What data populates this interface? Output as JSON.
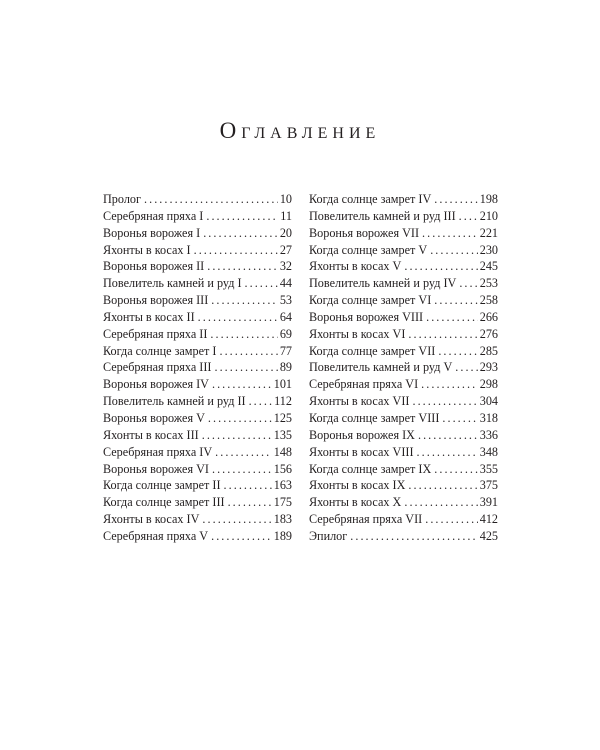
{
  "title": "Оглавление",
  "left_column": [
    {
      "title": "Пролог",
      "page": "10"
    },
    {
      "title": "Серебряная пряха I",
      "page": "11"
    },
    {
      "title": "Воронья ворожея I",
      "page": "20"
    },
    {
      "title": "Яхонты в косах I",
      "page": "27"
    },
    {
      "title": "Воронья ворожея II",
      "page": "32"
    },
    {
      "title": "Повелитель камней и руд I",
      "page": "44"
    },
    {
      "title": "Воронья ворожея III",
      "page": "53"
    },
    {
      "title": "Яхонты в косах II",
      "page": "64"
    },
    {
      "title": "Серебряная пряха II",
      "page": "69"
    },
    {
      "title": "Когда солнце замрет I",
      "page": "77"
    },
    {
      "title": "Серебряная пряха III",
      "page": "89"
    },
    {
      "title": "Воронья ворожея IV",
      "page": "101"
    },
    {
      "title": "Повелитель камней и руд II",
      "page": "112"
    },
    {
      "title": "Воронья ворожея V",
      "page": "125"
    },
    {
      "title": "Яхонты в косах III",
      "page": "135"
    },
    {
      "title": "Серебряная пряха IV",
      "page": "148"
    },
    {
      "title": "Воронья ворожея VI",
      "page": "156"
    },
    {
      "title": "Когда солнце замрет II",
      "page": "163"
    },
    {
      "title": "Когда солнце замрет III",
      "page": "175"
    },
    {
      "title": "Яхонты в косах IV",
      "page": "183"
    },
    {
      "title": "Серебряная пряха V",
      "page": "189"
    }
  ],
  "right_column": [
    {
      "title": "Когда солнце замрет IV",
      "page": "198"
    },
    {
      "title": "Повелитель камней и руд III",
      "page": "210"
    },
    {
      "title": "Воронья ворожея VII",
      "page": "221"
    },
    {
      "title": "Когда солнце замрет V",
      "page": "230"
    },
    {
      "title": "Яхонты в косах V",
      "page": "245"
    },
    {
      "title": "Повелитель камней и руд IV",
      "page": "253"
    },
    {
      "title": "Когда солнце замрет VI",
      "page": "258"
    },
    {
      "title": "Воронья ворожея VIII",
      "page": "266"
    },
    {
      "title": "Яхонты в косах VI",
      "page": "276"
    },
    {
      "title": "Когда солнце замрет VII",
      "page": "285"
    },
    {
      "title": "Повелитель камней и руд V",
      "page": "293"
    },
    {
      "title": "Серебряная пряха VI",
      "page": "298"
    },
    {
      "title": "Яхонты в косах VII",
      "page": "304"
    },
    {
      "title": "Когда солнце замрет VIII",
      "page": "318"
    },
    {
      "title": "Воронья ворожея IX",
      "page": "336"
    },
    {
      "title": "Яхонты в косах VIII",
      "page": "348"
    },
    {
      "title": "Когда солнце замрет IX",
      "page": "355"
    },
    {
      "title": "Яхонты в косах IX",
      "page": "375"
    },
    {
      "title": "Яхонты в косах X",
      "page": "391"
    },
    {
      "title": "Серебряная пряха VII",
      "page": "412"
    },
    {
      "title": "Эпилог",
      "page": "425"
    }
  ]
}
